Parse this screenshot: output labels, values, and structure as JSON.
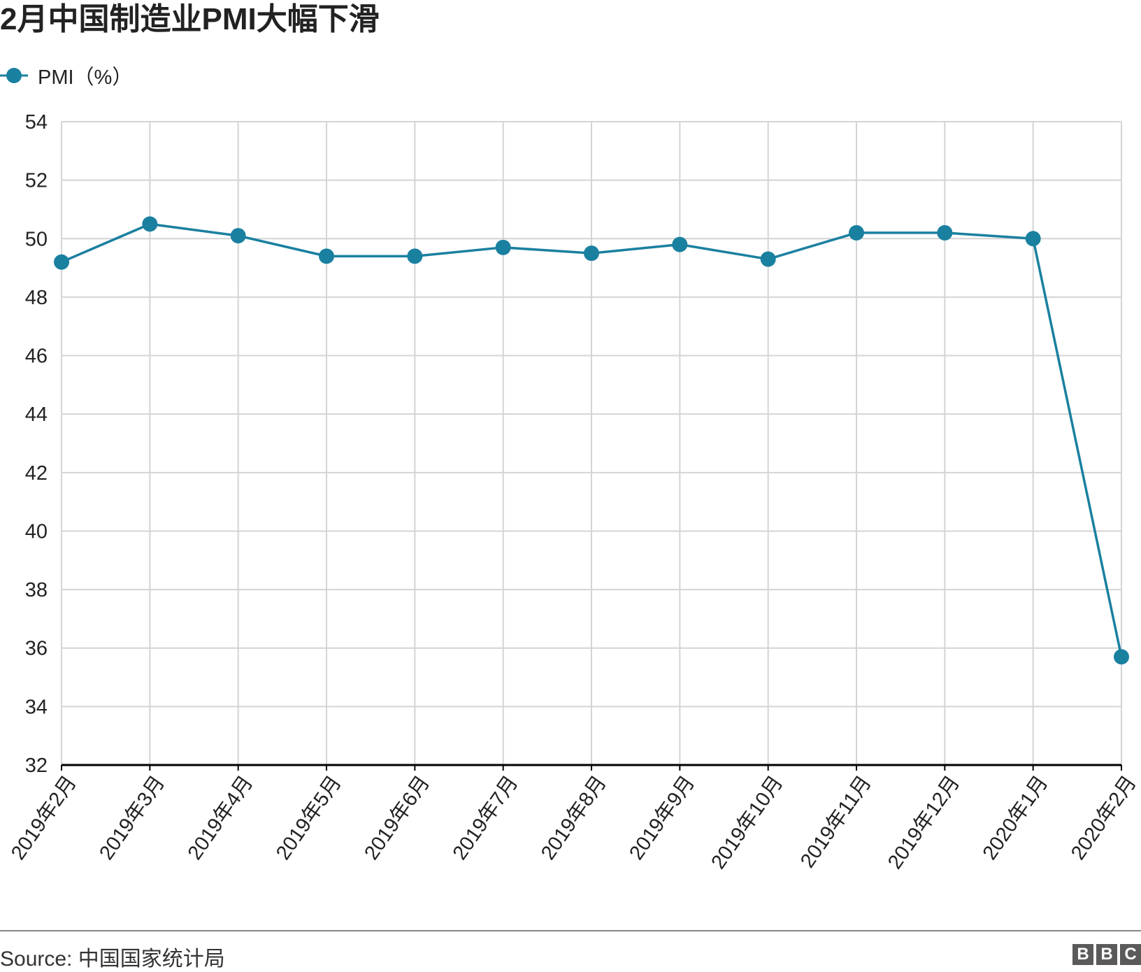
{
  "title": "2月中国制造业PMI大幅下滑",
  "legend": {
    "label": "PMI（%）"
  },
  "source": "Source: 中国国家统计局",
  "brand": {
    "letters": [
      "B",
      "B",
      "C"
    ]
  },
  "colors": {
    "series": "#1a80a0",
    "grid": "#d4d4d4",
    "axis": "#000000"
  },
  "chart_data": {
    "type": "line",
    "title": "2月中国制造业PMI大幅下滑",
    "xlabel": "",
    "ylabel": "",
    "categories": [
      "2019年2月",
      "2019年3月",
      "2019年4月",
      "2019年5月",
      "2019年6月",
      "2019年7月",
      "2019年8月",
      "2019年9月",
      "2019年10月",
      "2019年11月",
      "2019年12月",
      "2020年1月",
      "2020年2月"
    ],
    "series": [
      {
        "name": "PMI（%）",
        "values": [
          49.2,
          50.5,
          50.1,
          49.4,
          49.4,
          49.7,
          49.5,
          49.8,
          49.3,
          50.2,
          50.2,
          50.0,
          35.7
        ]
      }
    ],
    "ylim": [
      32,
      54
    ],
    "yticks": [
      32,
      34,
      36,
      38,
      40,
      42,
      44,
      46,
      48,
      50,
      52,
      54
    ],
    "grid": true,
    "legend_position": "top-left"
  }
}
